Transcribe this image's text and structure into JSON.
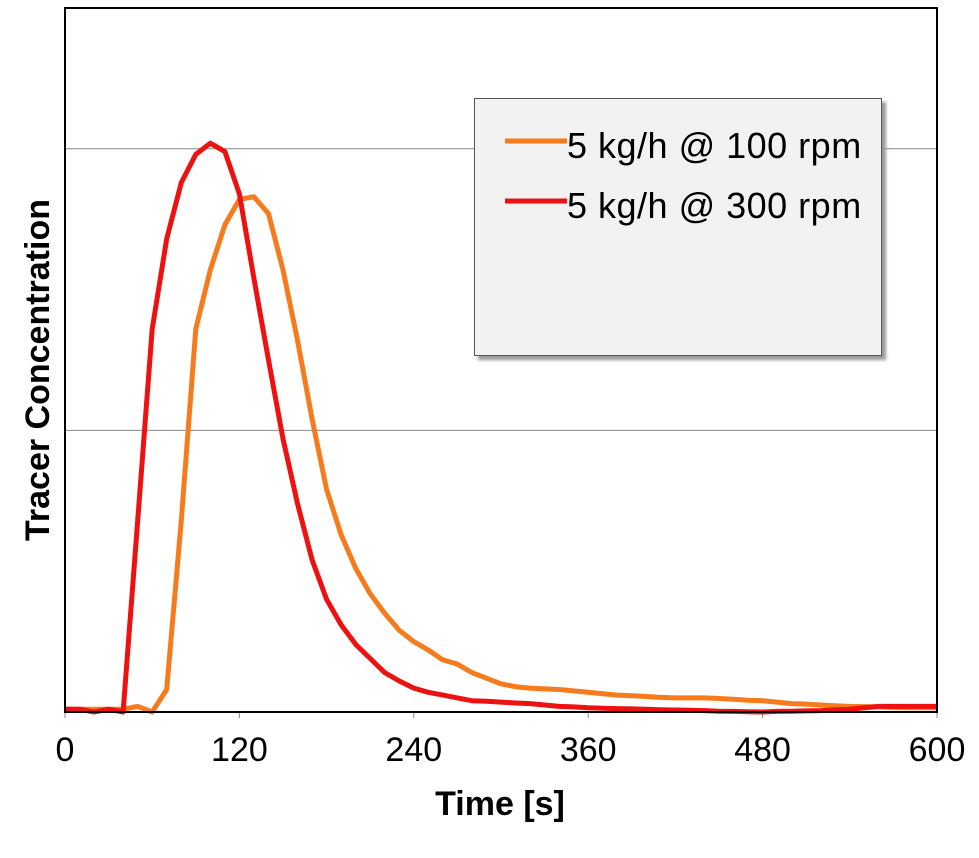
{
  "chart_data": {
    "type": "line",
    "xlabel": "Time [s]",
    "ylabel": "Tracer Concentration",
    "x": [
      0,
      10,
      20,
      30,
      40,
      50,
      60,
      70,
      80,
      90,
      100,
      110,
      120,
      130,
      140,
      150,
      160,
      170,
      180,
      190,
      200,
      210,
      220,
      230,
      240,
      250,
      260,
      270,
      280,
      290,
      300,
      310,
      320,
      330,
      340,
      350,
      360,
      370,
      380,
      390,
      400,
      410,
      420,
      430,
      440,
      450,
      460,
      470,
      480,
      490,
      500,
      510,
      520,
      530,
      540,
      550,
      560,
      570,
      580,
      590,
      600
    ],
    "series": [
      {
        "name": "5 kg/h @ 100 rpm",
        "color": "#f77b1c",
        "values": [
          0.01,
          0.01,
          0.01,
          0.01,
          0.01,
          0.02,
          0.0,
          0.08,
          0.68,
          1.36,
          1.57,
          1.73,
          1.82,
          1.83,
          1.77,
          1.57,
          1.32,
          1.04,
          0.79,
          0.63,
          0.51,
          0.42,
          0.35,
          0.29,
          0.25,
          0.22,
          0.185,
          0.17,
          0.14,
          0.12,
          0.1,
          0.09,
          0.085,
          0.082,
          0.08,
          0.075,
          0.07,
          0.065,
          0.06,
          0.058,
          0.055,
          0.052,
          0.05,
          0.05,
          0.05,
          0.048,
          0.045,
          0.042,
          0.04,
          0.035,
          0.03,
          0.028,
          0.025,
          0.022,
          0.02,
          0.019,
          0.018,
          0.016,
          0.015,
          0.015,
          0.015
        ]
      },
      {
        "name": "5 kg/h @ 300 rpm",
        "color": "#ee1111",
        "values": [
          0.01,
          0.01,
          0.0,
          0.01,
          0.0,
          0.68,
          1.36,
          1.68,
          1.88,
          1.98,
          2.02,
          1.99,
          1.84,
          1.54,
          1.25,
          0.97,
          0.74,
          0.54,
          0.4,
          0.31,
          0.24,
          0.19,
          0.14,
          0.11,
          0.085,
          0.07,
          0.06,
          0.05,
          0.04,
          0.038,
          0.035,
          0.032,
          0.03,
          0.025,
          0.02,
          0.018,
          0.015,
          0.013,
          0.012,
          0.011,
          0.01,
          0.008,
          0.007,
          0.006,
          0.005,
          0.003,
          0.002,
          0.001,
          0.0,
          0.002,
          0.003,
          0.004,
          0.005,
          0.008,
          0.01,
          0.015,
          0.02,
          0.02,
          0.02,
          0.02,
          0.02
        ]
      }
    ],
    "xlim": [
      0,
      600
    ],
    "xticks": [
      0,
      120,
      240,
      360,
      480,
      600
    ],
    "ylim": [
      0,
      2.5
    ],
    "yticks": [
      0,
      1,
      2
    ],
    "grid": true
  }
}
